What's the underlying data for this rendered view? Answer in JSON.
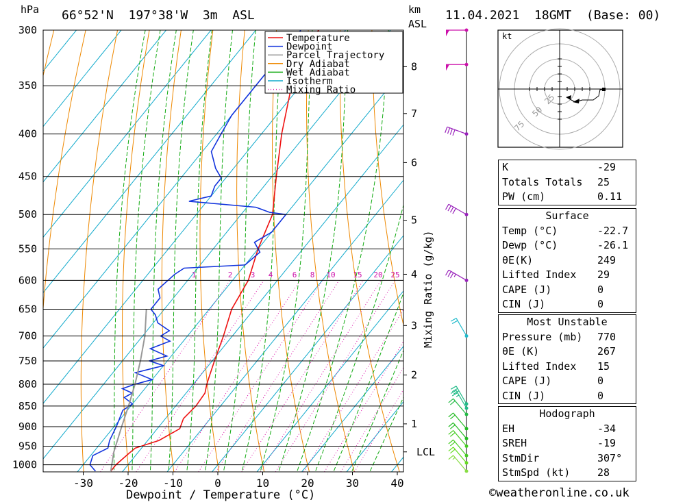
{
  "header": {
    "pressure_unit": "hPa",
    "location": "66°52'N  197°38'W  3m  ASL",
    "km_label_1": "km",
    "km_label_2": "ASL",
    "datetime": "11.04.2021  18GMT  (Base: 00)"
  },
  "chart_data": {
    "type": "line",
    "title": "66°52'N  197°38'W  3m  ASL",
    "xlabel": "Dewpoint / Temperature (°C)",
    "ylabel": "hPa",
    "pressure_levels": [
      300,
      350,
      400,
      450,
      500,
      550,
      600,
      650,
      700,
      750,
      800,
      850,
      900,
      950,
      1000
    ],
    "temperature_ticks": [
      -30,
      -20,
      -10,
      0,
      10,
      20,
      30,
      40
    ],
    "xlim": [
      -39,
      41
    ],
    "ylim": [
      1020,
      300
    ],
    "height_axis": {
      "label": "Mixing Ratio (g/kg)",
      "km_ticks": [
        {
          "km": "8",
          "p": 332
        },
        {
          "km": "7",
          "p": 378
        },
        {
          "km": "6",
          "p": 433
        },
        {
          "km": "5",
          "p": 508
        },
        {
          "km": "4",
          "p": 590
        },
        {
          "km": "3",
          "p": 680
        },
        {
          "km": "2",
          "p": 780
        },
        {
          "km": "1",
          "p": 893
        },
        {
          "km": "LCL",
          "p": 965
        }
      ]
    },
    "mixing_ratio_labels": [
      "1",
      "2",
      "3",
      "4",
      "6",
      "8",
      "10",
      "15",
      "20",
      "25"
    ],
    "legend": {
      "position": "top-right",
      "entries": [
        {
          "name": "Temperature",
          "color": "#ee1111"
        },
        {
          "name": "Dewpoint",
          "color": "#1133dd"
        },
        {
          "name": "Parcel Trajectory",
          "color": "#999999"
        },
        {
          "name": "Dry Adiabat",
          "color": "#ee8800"
        },
        {
          "name": "Wet Adiabat",
          "color": "#11aa11"
        },
        {
          "name": "Isotherm",
          "color": "#11aacc"
        },
        {
          "name": "Mixing Ratio",
          "color": "#dd11aa"
        }
      ]
    },
    "series": [
      {
        "name": "Temperature",
        "color": "#ee1111",
        "points": [
          [
            1018,
            -22.7
          ],
          [
            1000,
            -22.7
          ],
          [
            970,
            -21.9
          ],
          [
            955,
            -21.4
          ],
          [
            935,
            -17.5
          ],
          [
            905,
            -15
          ],
          [
            880,
            -16
          ],
          [
            850,
            -15.5
          ],
          [
            820,
            -15.8
          ],
          [
            800,
            -17
          ],
          [
            780,
            -18
          ],
          [
            750,
            -19.5
          ],
          [
            700,
            -22
          ],
          [
            650,
            -25
          ],
          [
            600,
            -26.5
          ],
          [
            550,
            -30
          ],
          [
            500,
            -33
          ],
          [
            450,
            -39
          ],
          [
            400,
            -45.5
          ],
          [
            350,
            -52
          ],
          [
            330,
            -55.5
          ],
          [
            315,
            -55.5
          ],
          [
            300,
            -56
          ]
        ]
      },
      {
        "name": "Dewpoint",
        "color": "#1133dd",
        "points": [
          [
            1018,
            -26.1
          ],
          [
            1000,
            -28.5
          ],
          [
            975,
            -29.5
          ],
          [
            955,
            -27.5
          ],
          [
            935,
            -28.5
          ],
          [
            900,
            -29.5
          ],
          [
            860,
            -31
          ],
          [
            845,
            -30
          ],
          [
            830,
            -33
          ],
          [
            820,
            -32
          ],
          [
            810,
            -35
          ],
          [
            800,
            -33
          ],
          [
            790,
            -30
          ],
          [
            775,
            -35
          ],
          [
            760,
            -30
          ],
          [
            750,
            -34
          ],
          [
            740,
            -31
          ],
          [
            725,
            -36
          ],
          [
            710,
            -33
          ],
          [
            700,
            -36
          ],
          [
            690,
            -35
          ],
          [
            675,
            -39
          ],
          [
            660,
            -41
          ],
          [
            650,
            -43
          ],
          [
            630,
            -43
          ],
          [
            615,
            -45
          ],
          [
            590,
            -44
          ],
          [
            580,
            -43
          ],
          [
            575,
            -30
          ],
          [
            555,
            -29
          ],
          [
            540,
            -32
          ],
          [
            525,
            -30
          ],
          [
            500,
            -30
          ],
          [
            497,
            -34
          ],
          [
            490,
            -38
          ],
          [
            482,
            -54
          ],
          [
            475,
            -50
          ],
          [
            462,
            -51
          ],
          [
            452,
            -51
          ],
          [
            440,
            -54
          ],
          [
            420,
            -58
          ],
          [
            400,
            -59
          ],
          [
            380,
            -60
          ],
          [
            340,
            -60
          ],
          [
            320,
            -59
          ],
          [
            300,
            -60
          ]
        ]
      },
      {
        "name": "Parcel Trajectory",
        "color": "#999999",
        "points": [
          [
            1018,
            -22.7
          ],
          [
            965,
            -25.5
          ],
          [
            900,
            -28.3
          ],
          [
            850,
            -30.5
          ],
          [
            800,
            -33
          ],
          [
            750,
            -36
          ],
          [
            700,
            -39.5
          ],
          [
            650,
            -44
          ]
        ]
      }
    ]
  },
  "wind_profile": {
    "barbs": [
      {
        "p": 300,
        "dir": 270,
        "spd": 50,
        "color": "#cc11aa"
      },
      {
        "p": 330,
        "dir": 270,
        "spd": 50,
        "color": "#cc11aa"
      },
      {
        "p": 400,
        "dir": 290,
        "spd": 40,
        "color": "#9922bb"
      },
      {
        "p": 500,
        "dir": 300,
        "spd": 40,
        "color": "#9922bb"
      },
      {
        "p": 600,
        "dir": 300,
        "spd": 35,
        "color": "#9922bb"
      },
      {
        "p": 700,
        "dir": 330,
        "spd": 20,
        "color": "#22bbcc"
      },
      {
        "p": 845,
        "dir": 330,
        "spd": 30,
        "color": "#22bb88"
      },
      {
        "p": 855,
        "dir": 330,
        "spd": 25,
        "color": "#22bb88"
      },
      {
        "p": 870,
        "dir": 320,
        "spd": 20,
        "color": "#22bb44"
      },
      {
        "p": 905,
        "dir": 320,
        "spd": 20,
        "color": "#22bb22"
      },
      {
        "p": 930,
        "dir": 320,
        "spd": 20,
        "color": "#22bb22"
      },
      {
        "p": 950,
        "dir": 320,
        "spd": 20,
        "color": "#44cc22"
      },
      {
        "p": 975,
        "dir": 320,
        "spd": 20,
        "color": "#44cc22"
      },
      {
        "p": 995,
        "dir": 320,
        "spd": 20,
        "color": "#66dd22"
      },
      {
        "p": 1018,
        "dir": 320,
        "spd": 15,
        "color": "#88dd44"
      }
    ]
  },
  "hodograph": {
    "unit": "kt",
    "ring_labels": [
      "25",
      "50",
      "75"
    ]
  },
  "indices": {
    "summary": [
      {
        "label": "K",
        "value": "-29"
      },
      {
        "label": "Totals Totals",
        "value": "25"
      },
      {
        "label": "PW (cm)",
        "value": "0.11"
      }
    ],
    "surface": {
      "title": "Surface",
      "temp_label": "Temp (°C)",
      "temp_value": "-22.7",
      "dewp_label": "Dewp (°C)",
      "dewp_value": "-26.1",
      "theta_label": "θE(K)",
      "theta_value": "249",
      "li_label": "Lifted Index",
      "li_value": "29",
      "cape_label": "CAPE (J)",
      "cape_value": "0",
      "cin_label": "CIN (J)",
      "cin_value": "0"
    },
    "most_unstable": {
      "title": "Most Unstable",
      "pressure_label": "Pressure (mb)",
      "pressure_value": "770",
      "theta_label": "θE (K)",
      "theta_value": "267",
      "li_label": "Lifted Index",
      "li_value": "15",
      "cape_label": "CAPE (J)",
      "cape_value": "0",
      "cin_label": "CIN (J)",
      "cin_value": "0"
    },
    "hodograph": {
      "title": "Hodograph",
      "eh_label": "EH",
      "eh_value": "-34",
      "sreh_label": "SREH",
      "sreh_value": "-19",
      "stmdir_label": "StmDir",
      "stmdir_value": "307°",
      "stmspd_label": "StmSpd (kt)",
      "stmspd_value": "28"
    }
  },
  "footer": {
    "copyright": "©weatheronline.co.uk"
  }
}
